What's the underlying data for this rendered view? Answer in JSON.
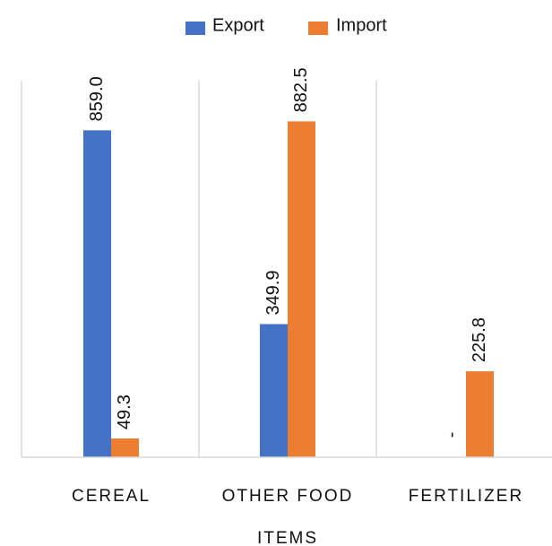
{
  "chart_data": {
    "type": "bar",
    "categories": [
      [
        "CEREAL"
      ],
      [
        "OTHER FOOD",
        "ITEMS"
      ],
      [
        "FERTILIZER"
      ]
    ],
    "series": [
      {
        "name": "Export",
        "color": "#4472C4",
        "values": [
          859.0,
          349.9,
          null
        ],
        "labels": [
          "859.0",
          "349.9",
          "-"
        ]
      },
      {
        "name": "Import",
        "color": "#ED7D31",
        "values": [
          49.3,
          882.5,
          225.8
        ],
        "labels": [
          "49.3",
          "882.5",
          "225.8"
        ]
      }
    ],
    "ylim": [
      0,
      1000
    ],
    "legend": "top",
    "grid": "vertical category separators",
    "data_label_rotation": -90
  }
}
